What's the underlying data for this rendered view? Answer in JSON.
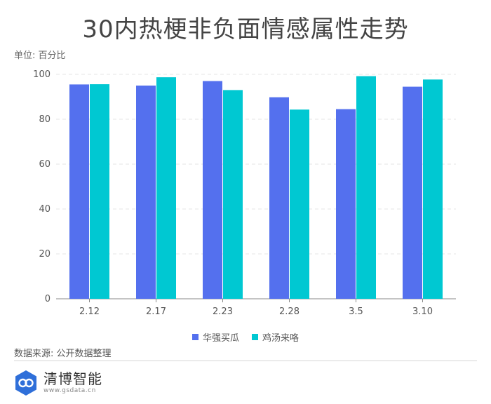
{
  "title": "30内热梗非负面情感属性走势",
  "unit_label": "单位: 百分比",
  "source_label": "数据来源: 公开数据整理",
  "brand": {
    "name": "清博智能",
    "url": "www.gsdata.cn",
    "logo_icon": "link-logo-icon"
  },
  "colors": {
    "series1": "#5470ee",
    "series2": "#00c8d2",
    "grid": "#e6e6e6",
    "axis": "#888888"
  },
  "chart_data": {
    "type": "bar",
    "categories": [
      "2.12",
      "2.17",
      "2.23",
      "2.28",
      "3.5",
      "3.10"
    ],
    "series": [
      {
        "name": "华强买瓜",
        "values": [
          95.5,
          95,
          97,
          89.8,
          84.5,
          94.5
        ]
      },
      {
        "name": "鸡汤来咯",
        "values": [
          95.6,
          98.7,
          93,
          84.3,
          99.2,
          97.7
        ]
      }
    ],
    "yticks": [
      "0",
      "20",
      "40",
      "60",
      "80",
      "100"
    ],
    "ylim": [
      0,
      100
    ],
    "ylabel": "单位: 百分比",
    "grid": true,
    "legend_position": "bottom"
  }
}
